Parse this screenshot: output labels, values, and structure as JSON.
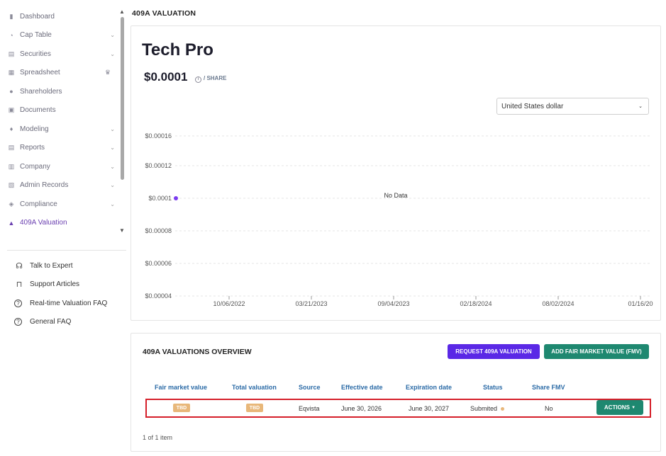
{
  "sidebar": {
    "items": [
      {
        "label": "Dashboard",
        "icon": "dashboard-icon",
        "glyph": "▮",
        "chevron": false
      },
      {
        "label": "Cap Table",
        "icon": "pie-chart-icon",
        "glyph": "◔",
        "chevron": true
      },
      {
        "label": "Securities",
        "icon": "document-icon",
        "glyph": "▤",
        "chevron": true
      },
      {
        "label": "Spreadsheet",
        "icon": "grid-icon",
        "glyph": "▦",
        "chevron": false,
        "crown": true
      },
      {
        "label": "Shareholders",
        "icon": "person-icon",
        "glyph": "●",
        "chevron": false
      },
      {
        "label": "Documents",
        "icon": "image-icon",
        "glyph": "▣",
        "chevron": false
      },
      {
        "label": "Modeling",
        "icon": "bulb-icon",
        "glyph": "♦",
        "chevron": true
      },
      {
        "label": "Reports",
        "icon": "report-icon",
        "glyph": "▤",
        "chevron": true
      },
      {
        "label": "Company",
        "icon": "building-icon",
        "glyph": "▥",
        "chevron": true
      },
      {
        "label": "Admin Records",
        "icon": "records-icon",
        "glyph": "▧",
        "chevron": true
      },
      {
        "label": "Compliance",
        "icon": "shield-icon",
        "glyph": "◈",
        "chevron": true
      },
      {
        "label": "409A Valuation",
        "icon": "valuation-icon",
        "glyph": "▲",
        "chevron": false,
        "active": true
      }
    ],
    "help": [
      {
        "label": "Talk to Expert",
        "icon": "headset-icon",
        "glyph": "☊"
      },
      {
        "label": "Support Articles",
        "icon": "book-icon",
        "glyph": "⊓"
      },
      {
        "label": "Real-time Valuation FAQ",
        "icon": "question-icon",
        "glyph": "?"
      },
      {
        "label": "General FAQ",
        "icon": "question-icon",
        "glyph": "?"
      }
    ]
  },
  "page": {
    "title": "409A VALUATION"
  },
  "valuation": {
    "company": "Tech Pro",
    "price": "$0.0001",
    "price_unit": "/ SHARE",
    "currency": "United States dollar"
  },
  "chart_data": {
    "type": "line",
    "y_ticks": [
      "$0.00016",
      "$0.00012",
      "$0.0001",
      "$0.00008",
      "$0.00006",
      "$0.00004"
    ],
    "x_ticks": [
      "10/06/2022",
      "03/21/2023",
      "09/04/2023",
      "02/18/2024",
      "08/02/2024",
      "01/16/20"
    ],
    "points": [
      {
        "x": "",
        "y": 0.0001
      }
    ],
    "annotation": "No Data",
    "point_color": "#7b3cf0",
    "grid": true
  },
  "overview": {
    "title": "409A VALUATIONS OVERVIEW",
    "request_button": "REQUEST 409A VALUATION",
    "add_button": "ADD FAIR MARKET VALUE (FMV)",
    "columns": [
      "Fair market value",
      "Total valuation",
      "Source",
      "Effective date",
      "Expiration date",
      "Status",
      "Share FMV"
    ],
    "row": {
      "fair_market_value": "TBD",
      "total_valuation": "TBD",
      "source": "Eqvista",
      "effective_date": "June 30, 2026",
      "expiration_date": "June 30, 2027",
      "status": "Submited",
      "share_fmv": "No",
      "actions": "ACTIONS"
    },
    "pager": "1 of 1 item"
  },
  "colors": {
    "accent": "#6a3fb0",
    "primary_button": "#5a28e6",
    "green_button": "#1e8870",
    "tbd_badge": "#e8b77a",
    "highlight": "#d51f2a"
  }
}
